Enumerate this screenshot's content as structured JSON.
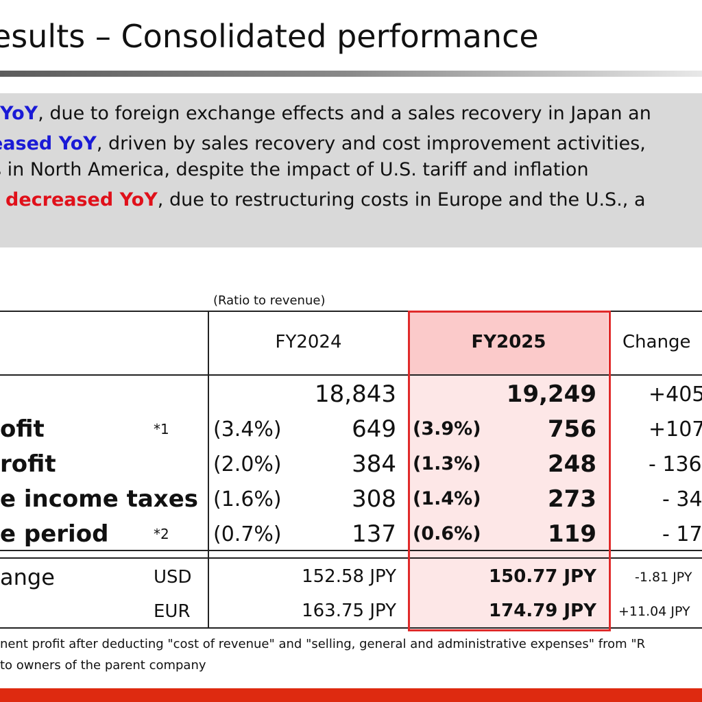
{
  "title": "esults – Consolidated performance",
  "summary": {
    "line1": {
      "highlight": "YoY",
      "rest": ", due to foreign exchange effects and a sales recovery in Japan an"
    },
    "line2": {
      "highlight": "eased YoY",
      "rest": ", driven by sales recovery and cost improvement activities,"
    },
    "line3": "s in North America, despite the impact of U.S. tariff and inflation",
    "line4": {
      "highlight": "decreased YoY",
      "rest": ", due to restructuring costs in Europe and the U.S., a"
    }
  },
  "table": {
    "ratio_note": "(Ratio to revenue)",
    "headers": {
      "fy2024": "FY2024",
      "fy2025": "FY2025",
      "change": "Change"
    },
    "rows": [
      {
        "label": "",
        "note": "",
        "r24": "",
        "v24": "18,843",
        "r25": "",
        "v25": "19,249",
        "chg": "+405"
      },
      {
        "label": "ofit",
        "note": "*1",
        "r24": "(3.4%)",
        "v24": "649",
        "r25": "(3.9%)",
        "v25": "756",
        "chg": "+107"
      },
      {
        "label": "rofit",
        "note": "",
        "r24": "(2.0%)",
        "v24": "384",
        "r25": "(1.3%)",
        "v25": "248",
        "chg": "- 136"
      },
      {
        "label": "e income taxes",
        "note": "",
        "r24": "(1.6%)",
        "v24": "308",
        "r25": "(1.4%)",
        "v25": "273",
        "chg": "- 34"
      },
      {
        "label": "e period",
        "note": "*2",
        "r24": "(0.7%)",
        "v24": "137",
        "r25": "(0.6%)",
        "v25": "119",
        "chg": "- 17"
      }
    ],
    "fx": {
      "label": "ange",
      "rows": [
        {
          "cur": "USD",
          "v24": "152.58 JPY",
          "v25": "150.77 JPY",
          "chg": "-1.81 JPY"
        },
        {
          "cur": "EUR",
          "v24": "163.75 JPY",
          "v25": "174.79 JPY",
          "chg": "+11.04 JPY"
        }
      ]
    }
  },
  "footnotes": {
    "note1": "nent profit after deducting \"cost of revenue\" and \"selling, general and administrative expenses\" from \"R",
    "note2": "to owners of the parent company"
  },
  "colors": {
    "accent_red": "#e02a2a",
    "highlight_blue": "#1a1ad6",
    "bar_red": "#de2a10"
  }
}
